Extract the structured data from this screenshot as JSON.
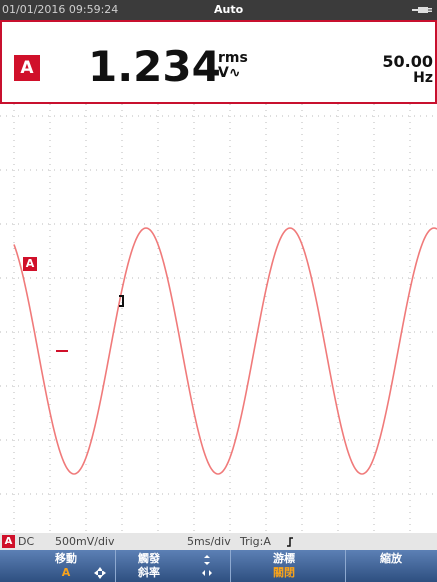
{
  "status": {
    "datetime": "01/01/2016 09:59:24",
    "mode": "Auto"
  },
  "reading": {
    "channel": "A",
    "value": "1.234",
    "unit_top": "rms",
    "unit_bottom": "V∿",
    "frequency": "50.00",
    "frequency_unit": "Hz"
  },
  "scope": {
    "channel_marker": "A"
  },
  "footer": {
    "channel": "A",
    "coupling": "DC",
    "volts_per_div": "500mV/div",
    "time_per_div": "5ms/div",
    "trigger": "Trig:A"
  },
  "softkeys": [
    {
      "line1": "移動",
      "line2": "A"
    },
    {
      "line1": "觸發",
      "line2": "斜率"
    },
    {
      "line1": "游標",
      "line2": "關閉"
    },
    {
      "line1": "縮放"
    }
  ]
}
